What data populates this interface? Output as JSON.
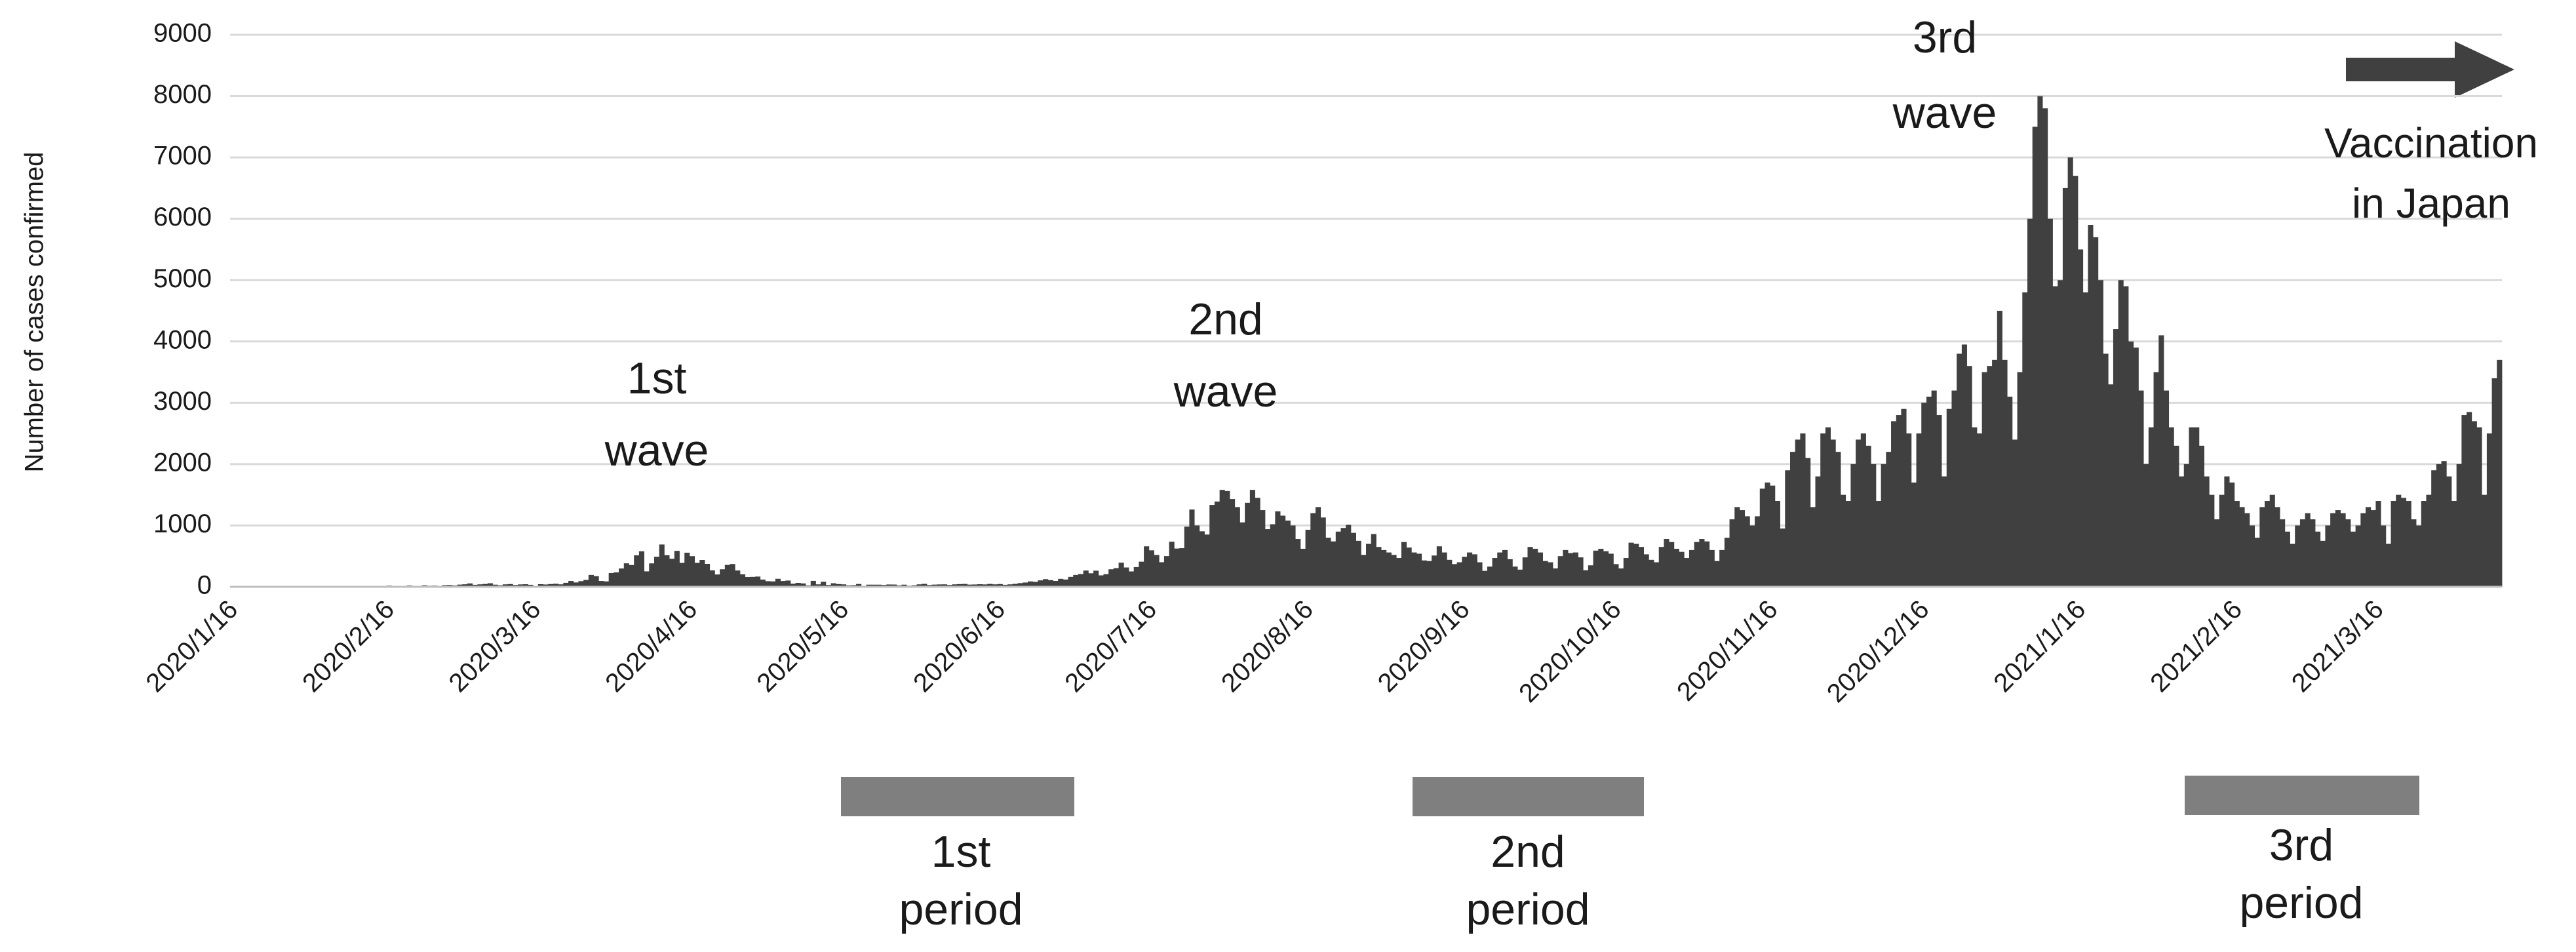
{
  "chart_data": {
    "type": "bar",
    "y_label": "Number of cases confirmed",
    "color": "#404040",
    "ylim": [
      0,
      9000
    ],
    "yticks": [
      0,
      1000,
      2000,
      3000,
      4000,
      5000,
      6000,
      7000,
      8000,
      9000
    ],
    "grid": true,
    "categories": [
      "2020/1/16",
      null,
      null,
      null,
      null,
      null,
      null,
      null,
      null,
      null,
      null,
      null,
      null,
      null,
      null,
      null,
      null,
      null,
      null,
      null,
      null,
      null,
      null,
      null,
      null,
      null,
      null,
      null,
      null,
      null,
      null,
      "2020/2/16",
      null,
      null,
      null,
      null,
      null,
      null,
      null,
      null,
      null,
      null,
      null,
      null,
      null,
      null,
      null,
      null,
      null,
      null,
      null,
      null,
      null,
      null,
      null,
      null,
      null,
      null,
      null,
      null,
      "2020/3/16",
      null,
      null,
      null,
      null,
      null,
      null,
      null,
      null,
      null,
      null,
      null,
      null,
      null,
      null,
      null,
      null,
      null,
      null,
      null,
      null,
      null,
      null,
      null,
      null,
      null,
      null,
      null,
      null,
      null,
      null,
      "2020/4/16",
      null,
      null,
      null,
      null,
      null,
      null,
      null,
      null,
      null,
      null,
      null,
      null,
      null,
      null,
      null,
      null,
      null,
      null,
      null,
      null,
      null,
      null,
      null,
      null,
      null,
      null,
      null,
      null,
      null,
      "2020/5/16",
      null,
      null,
      null,
      null,
      null,
      null,
      null,
      null,
      null,
      null,
      null,
      null,
      null,
      null,
      null,
      null,
      null,
      null,
      null,
      null,
      null,
      null,
      null,
      null,
      null,
      null,
      null,
      null,
      null,
      null,
      "2020/6/16",
      null,
      null,
      null,
      null,
      null,
      null,
      null,
      null,
      null,
      null,
      null,
      null,
      null,
      null,
      null,
      null,
      null,
      null,
      null,
      null,
      null,
      null,
      null,
      null,
      null,
      null,
      null,
      null,
      null,
      "2020/7/16",
      null,
      null,
      null,
      null,
      null,
      null,
      null,
      null,
      null,
      null,
      null,
      null,
      null,
      null,
      null,
      null,
      null,
      null,
      null,
      null,
      null,
      null,
      null,
      null,
      null,
      null,
      null,
      null,
      null,
      null,
      "2020/8/16",
      null,
      null,
      null,
      null,
      null,
      null,
      null,
      null,
      null,
      null,
      null,
      null,
      null,
      null,
      null,
      null,
      null,
      null,
      null,
      null,
      null,
      null,
      null,
      null,
      null,
      null,
      null,
      null,
      null,
      null,
      "2020/9/16",
      null,
      null,
      null,
      null,
      null,
      null,
      null,
      null,
      null,
      null,
      null,
      null,
      null,
      null,
      null,
      null,
      null,
      null,
      null,
      null,
      null,
      null,
      null,
      null,
      null,
      null,
      null,
      null,
      null,
      "2020/10/16",
      null,
      null,
      null,
      null,
      null,
      null,
      null,
      null,
      null,
      null,
      null,
      null,
      null,
      null,
      null,
      null,
      null,
      null,
      null,
      null,
      null,
      null,
      null,
      null,
      null,
      null,
      null,
      null,
      null,
      null,
      "2020/11/16",
      null,
      null,
      null,
      null,
      null,
      null,
      null,
      null,
      null,
      null,
      null,
      null,
      null,
      null,
      null,
      null,
      null,
      null,
      null,
      null,
      null,
      null,
      null,
      null,
      null,
      null,
      null,
      null,
      null,
      "2020/12/16",
      null,
      null,
      null,
      null,
      null,
      null,
      null,
      null,
      null,
      null,
      null,
      null,
      null,
      null,
      null,
      null,
      null,
      null,
      null,
      null,
      null,
      null,
      null,
      null,
      null,
      null,
      null,
      null,
      null,
      null,
      "2021/1/16",
      null,
      null,
      null,
      null,
      null,
      null,
      null,
      null,
      null,
      null,
      null,
      null,
      null,
      null,
      null,
      null,
      null,
      null,
      null,
      null,
      null,
      null,
      null,
      null,
      null,
      null,
      null,
      null,
      null,
      null,
      "2021/2/16",
      null,
      null,
      null,
      null,
      null,
      null,
      null,
      null,
      null,
      null,
      null,
      null,
      null,
      null,
      null,
      null,
      null,
      null,
      null,
      null,
      null,
      null,
      null,
      null,
      null,
      null,
      null,
      "2021/3/16",
      null,
      null,
      null,
      null,
      null,
      null,
      null,
      null,
      null,
      null,
      null,
      null,
      null,
      null,
      null,
      null,
      null,
      null,
      null,
      null,
      null,
      null,
      null,
      null
    ],
    "values": [
      0,
      0,
      0,
      0,
      1,
      0,
      0,
      2,
      0,
      3,
      5,
      2,
      0,
      3,
      1,
      2,
      0,
      4,
      0,
      2,
      3,
      5,
      0,
      8,
      12,
      0,
      3,
      5,
      10,
      4,
      14,
      20,
      8,
      15,
      10,
      22,
      9,
      15,
      25,
      18,
      20,
      14,
      27,
      30,
      22,
      36,
      41,
      55,
      33,
      40,
      46,
      58,
      35,
      25,
      40,
      45,
      30,
      39,
      42,
      33,
      15,
      43,
      38,
      45,
      50,
      40,
      65,
      96,
      71,
      93,
      112,
      194,
      173,
      96,
      88,
      225,
      235,
      299,
      383,
      355,
      513,
      579,
      252,
      382,
      490,
      690,
      515,
      457,
      586,
      390,
      556,
      500,
      390,
      438,
      374,
      268,
      201,
      286,
      357,
      372,
      266,
      203,
      160,
      162,
      167,
      118,
      92,
      88,
      131,
      95,
      102,
      50,
      64,
      55,
      23,
      97,
      40,
      82,
      30,
      58,
      45,
      40,
      23,
      27,
      46,
      14,
      35,
      35,
      35,
      30,
      38,
      37,
      23,
      35,
      18,
      25,
      40,
      48,
      29,
      36,
      39,
      40,
      30,
      40,
      44,
      47,
      36,
      38,
      42,
      39,
      47,
      40,
      45,
      33,
      40,
      48,
      60,
      70,
      88,
      80,
      105,
      125,
      109,
      96,
      130,
      119,
      162,
      194,
      208,
      265,
      221,
      263,
      187,
      206,
      286,
      305,
      393,
      315,
      251,
      322,
      410,
      660,
      595,
      519,
      401,
      501,
      735,
      624,
      630,
      980,
      1260,
      1000,
      905,
      852,
      1335,
      1390,
      1580,
      1562,
      1431,
      1300,
      1050,
      1370,
      1580,
      1450,
      1250,
      940,
      1020,
      1230,
      1160,
      1080,
      1000,
      780,
      620,
      930,
      1200,
      1300,
      1130,
      800,
      740,
      900,
      960,
      1010,
      880,
      750,
      520,
      700,
      860,
      650,
      600,
      560,
      520,
      470,
      730,
      640,
      560,
      540,
      430,
      420,
      510,
      660,
      560,
      440,
      370,
      400,
      490,
      560,
      530,
      400,
      260,
      330,
      470,
      560,
      600,
      450,
      330,
      280,
      480,
      650,
      620,
      560,
      420,
      400,
      300,
      500,
      600,
      550,
      560,
      480,
      270,
      350,
      590,
      620,
      580,
      540,
      370,
      300,
      470,
      720,
      700,
      650,
      530,
      440,
      400,
      650,
      780,
      730,
      620,
      570,
      470,
      600,
      730,
      780,
      740,
      600,
      420,
      600,
      800,
      1100,
      1300,
      1250,
      1150,
      1000,
      1150,
      1600,
      1700,
      1650,
      1400,
      950,
      1900,
      2200,
      2400,
      2500,
      2100,
      1300,
      1800,
      2500,
      2600,
      2400,
      2200,
      1500,
      1400,
      2000,
      2400,
      2500,
      2300,
      2000,
      1400,
      2000,
      2200,
      2700,
      2800,
      2900,
      2500,
      1700,
      2500,
      3000,
      3100,
      3200,
      2800,
      1800,
      2900,
      3200,
      3800,
      3950,
      3600,
      2600,
      2500,
      3500,
      3600,
      3700,
      4500,
      3700,
      3100,
      2400,
      3500,
      4800,
      6000,
      7500,
      8000,
      7800,
      6000,
      4900,
      5000,
      6500,
      7000,
      6700,
      5500,
      4800,
      5900,
      5700,
      5000,
      3800,
      3300,
      4200,
      5000,
      4900,
      4000,
      3900,
      3200,
      2000,
      2600,
      3500,
      4100,
      3200,
      2600,
      2300,
      1800,
      2000,
      2600,
      2600,
      2300,
      1800,
      1500,
      1100,
      1500,
      1800,
      1700,
      1400,
      1300,
      1200,
      1000,
      800,
      1300,
      1400,
      1500,
      1300,
      1100,
      900,
      700,
      1000,
      1100,
      1200,
      1100,
      900,
      750,
      1000,
      1200,
      1250,
      1200,
      1100,
      900,
      1000,
      1200,
      1300,
      1250,
      1400,
      1000,
      700,
      1400,
      1500,
      1450,
      1400,
      1100,
      1000,
      1400,
      1500,
      1900,
      2000,
      2050,
      1800,
      1400,
      2000,
      2800,
      2850,
      2700,
      2600,
      1500,
      2500,
      3400,
      3700
    ],
    "annotations": [
      {
        "lines": [
          "1st",
          "wave"
        ]
      },
      {
        "lines": [
          "2nd",
          "wave"
        ]
      },
      {
        "lines": [
          "3rd",
          "wave"
        ]
      },
      {
        "lines": [
          "Vaccination",
          "in Japan"
        ]
      },
      {
        "lines": [
          "1st",
          "period"
        ]
      },
      {
        "lines": [
          "2nd",
          "period"
        ]
      },
      {
        "lines": [
          "3rd",
          "period"
        ]
      }
    ]
  }
}
